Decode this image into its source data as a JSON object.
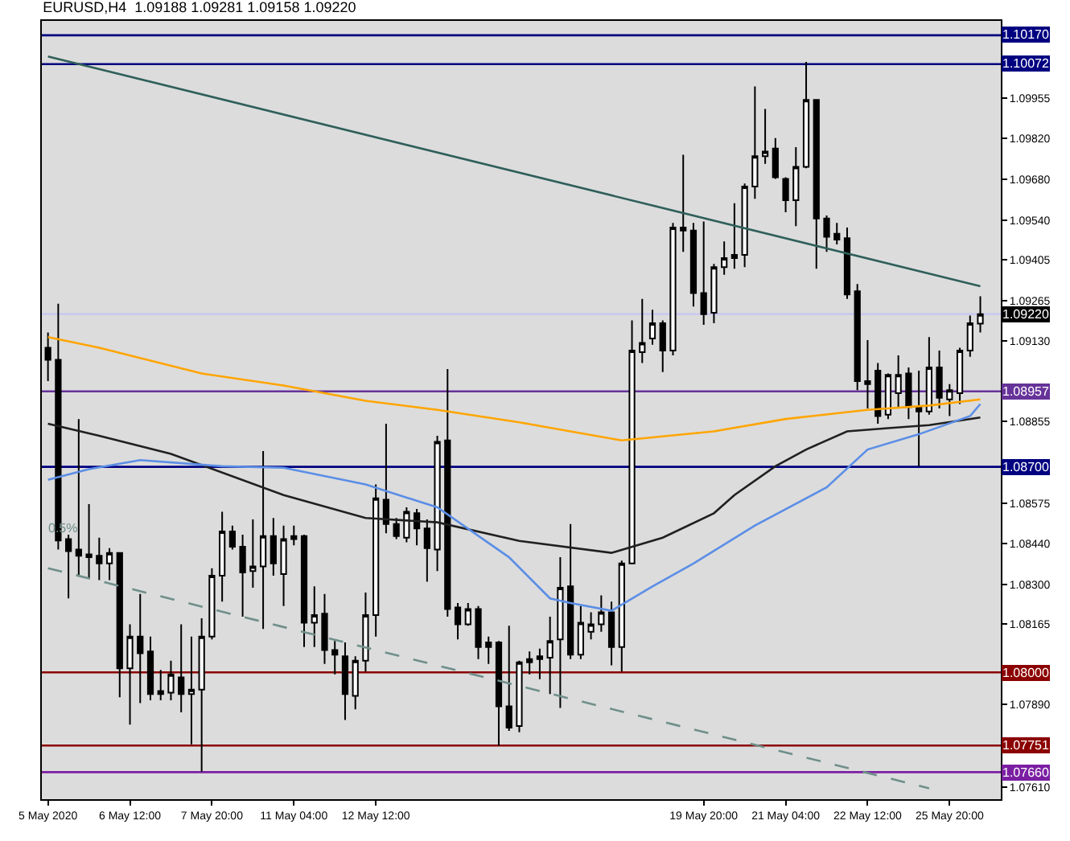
{
  "chart_data": {
    "type": "candlestick",
    "title": "EURUSD,H4  1.09188 1.09281 1.09158 1.09220",
    "categories": [
      "5 May 2020",
      null,
      null,
      null,
      null,
      null,
      null,
      null,
      "6 May 12:00",
      null,
      null,
      null,
      null,
      null,
      null,
      null,
      "7 May 20:00",
      null,
      null,
      null,
      null,
      null,
      null,
      null,
      "11 May 04:00",
      null,
      null,
      null,
      null,
      null,
      null,
      null,
      "12 May 12:00",
      null,
      null,
      null,
      null,
      null,
      null,
      null,
      null,
      null,
      null,
      null,
      null,
      null,
      null,
      null,
      null,
      null,
      null,
      null,
      null,
      null,
      null,
      null,
      null,
      null,
      null,
      null,
      null,
      null,
      null,
      null,
      "19 May 20:00",
      null,
      null,
      null,
      null,
      null,
      null,
      null,
      "21 May 04:00",
      null,
      null,
      null,
      null,
      null,
      null,
      null,
      "22 May 12:00",
      null,
      null,
      null,
      null,
      null,
      null,
      null,
      "25 May 20:00",
      null,
      null,
      null
    ],
    "ohlc": [
      [
        1.09106,
        1.09158,
        1.08992,
        1.09065
      ],
      [
        1.09065,
        1.09256,
        1.08418,
        1.08449
      ],
      [
        1.08454,
        1.08469,
        1.08252,
        1.08413
      ],
      [
        1.08418,
        1.08863,
        1.08329,
        1.08397
      ],
      [
        1.08402,
        1.08573,
        1.08319,
        1.08392
      ],
      [
        1.08397,
        1.08459,
        1.08314,
        1.08371
      ],
      [
        1.08371,
        1.08423,
        1.08314,
        1.08407
      ],
      [
        1.08407,
        1.08407,
        1.07915,
        1.08014
      ],
      [
        1.08014,
        1.08164,
        1.07822,
        1.08122
      ],
      [
        1.08122,
        1.08267,
        1.07895,
        1.08065
      ],
      [
        1.08071,
        1.08122,
        1.07905,
        1.07926
      ],
      [
        1.07936,
        1.08008,
        1.07905,
        1.07926
      ],
      [
        1.07931,
        1.0804,
        1.07905,
        1.07993
      ],
      [
        1.07983,
        1.08164,
        1.07864,
        1.07926
      ],
      [
        1.07926,
        1.08122,
        1.07755,
        1.07941
      ],
      [
        1.07941,
        1.08184,
        1.07662,
        1.08122
      ],
      [
        1.08122,
        1.08355,
        1.08112,
        1.08329
      ],
      [
        1.08329,
        1.08547,
        1.08241,
        1.0848
      ],
      [
        1.0848,
        1.085,
        1.08418,
        1.08428
      ],
      [
        1.08428,
        1.08469,
        1.0819,
        1.0834
      ],
      [
        1.08345,
        1.08521,
        1.08288,
        1.08361
      ],
      [
        1.08361,
        1.08754,
        1.08148,
        1.08464
      ],
      [
        1.08464,
        1.08526,
        1.08329,
        1.08371
      ],
      [
        1.08335,
        1.085,
        1.08226,
        1.08454
      ],
      [
        1.08454,
        1.085,
        1.08433,
        1.08464
      ],
      [
        1.08464,
        1.08469,
        1.08086,
        1.08169
      ],
      [
        1.08169,
        1.08293,
        1.08086,
        1.08195
      ],
      [
        1.082,
        1.08267,
        1.08029,
        1.08076
      ],
      [
        1.08076,
        1.08107,
        1.07993,
        1.0806
      ],
      [
        1.08055,
        1.08102,
        1.07838,
        1.07926
      ],
      [
        1.0792,
        1.08055,
        1.07874,
        1.0804
      ],
      [
        1.0804,
        1.08272,
        1.08003,
        1.08195
      ],
      [
        1.08195,
        1.0864,
        1.08122,
        1.08593
      ],
      [
        1.08588,
        1.08847,
        1.08474,
        1.08505
      ],
      [
        1.08505,
        1.08526,
        1.08454,
        1.08464
      ],
      [
        1.08459,
        1.08562,
        1.08443,
        1.08547
      ],
      [
        1.08542,
        1.08557,
        1.08433,
        1.0849
      ],
      [
        1.0849,
        1.08521,
        1.08309,
        1.08423
      ],
      [
        1.08418,
        1.08806,
        1.08345,
        1.08785
      ],
      [
        1.0879,
        1.09033,
        1.0819,
        1.08216
      ],
      [
        1.08221,
        1.08236,
        1.08112,
        1.08164
      ],
      [
        1.08164,
        1.08236,
        1.08159,
        1.08216
      ],
      [
        1.08216,
        1.08226,
        1.08045,
        1.08086
      ],
      [
        1.08102,
        1.08122,
        1.08029,
        1.08086
      ],
      [
        1.08102,
        1.08107,
        1.0775,
        1.07884
      ],
      [
        1.07884,
        1.08159,
        1.07801,
        1.07812
      ],
      [
        1.07817,
        1.0804,
        1.07796,
        1.08034
      ],
      [
        1.08034,
        1.08071,
        1.07993,
        1.08045
      ],
      [
        1.08055,
        1.08081,
        1.07977,
        1.08045
      ],
      [
        1.0805,
        1.0819,
        1.07926,
        1.08107
      ],
      [
        1.08112,
        1.08392,
        1.07879,
        1.08288
      ],
      [
        1.08293,
        1.08505,
        1.08045,
        1.0806
      ],
      [
        1.0806,
        1.08226,
        1.08045,
        1.08169
      ],
      [
        1.08138,
        1.08205,
        1.08112,
        1.08164
      ],
      [
        1.08164,
        1.08262,
        1.08138,
        1.08205
      ],
      [
        1.08205,
        1.08241,
        1.08024,
        1.08086
      ],
      [
        1.08086,
        1.08381,
        1.08003,
        1.08371
      ],
      [
        1.08371,
        1.09199,
        1.08371,
        1.09096
      ],
      [
        1.09091,
        1.09272,
        1.09054,
        1.09122
      ],
      [
        1.09137,
        1.09235,
        1.09116,
        1.09189
      ],
      [
        1.09189,
        1.09199,
        1.09023,
        1.09096
      ],
      [
        1.09096,
        1.09531,
        1.0908,
        1.09515
      ],
      [
        1.09515,
        1.09763,
        1.09432,
        1.09505
      ],
      [
        1.09505,
        1.09531,
        1.09246,
        1.09292
      ],
      [
        1.09292,
        1.09536,
        1.09184,
        1.0922
      ],
      [
        1.09225,
        1.09391,
        1.09189,
        1.0938
      ],
      [
        1.0938,
        1.09468,
        1.09354,
        1.09411
      ],
      [
        1.09411,
        1.09598,
        1.09375,
        1.09422
      ],
      [
        1.09422,
        1.09665,
        1.0938,
        1.09655
      ],
      [
        1.09655,
        1.09996,
        1.09613,
        1.09758
      ],
      [
        1.09758,
        1.09919,
        1.09732,
        1.09774
      ],
      [
        1.09784,
        1.0982,
        1.09681,
        1.09686
      ],
      [
        1.09681,
        1.09686,
        1.09567,
        1.09608
      ],
      [
        1.09608,
        1.09789,
        1.0952,
        1.09722
      ],
      [
        1.09722,
        1.10079,
        1.09717,
        1.0995
      ],
      [
        1.0995,
        1.0995,
        1.09375,
        1.09546
      ],
      [
        1.09546,
        1.09556,
        1.09432,
        1.09484
      ],
      [
        1.09494,
        1.09531,
        1.09458,
        1.09474
      ],
      [
        1.09479,
        1.09515,
        1.09272,
        1.09287
      ],
      [
        1.09298,
        1.09323,
        1.08961,
        1.08992
      ],
      [
        1.08992,
        1.09132,
        1.08899,
        1.08982
      ],
      [
        1.09028,
        1.09054,
        1.08847,
        1.08873
      ],
      [
        1.08878,
        1.09018,
        1.08863,
        1.09013
      ],
      [
        1.08951,
        1.0908,
        1.08899,
        1.09013
      ],
      [
        1.09018,
        1.09039,
        1.08863,
        1.08904
      ],
      [
        1.08904,
        1.09028,
        1.08702,
        1.08889
      ],
      [
        1.08889,
        1.09142,
        1.08878,
        1.09039
      ],
      [
        1.09039,
        1.09096,
        1.08899,
        1.08935
      ],
      [
        1.0893,
        1.08982,
        1.08873,
        1.08961
      ],
      [
        1.08951,
        1.09106,
        1.08914,
        1.09096
      ],
      [
        1.09096,
        1.09215,
        1.09075,
        1.09189
      ],
      [
        1.09188,
        1.09281,
        1.09158,
        1.0922
      ]
    ],
    "series": [
      {
        "type": "line",
        "color": "#ffa500",
        "line_style": "solid",
        "values": [
          1.09142,
          null,
          null,
          null,
          null,
          1.09106,
          null,
          null,
          null,
          null,
          null,
          null,
          null,
          null,
          null,
          1.09018,
          null,
          null,
          null,
          null,
          null,
          null,
          null,
          1.08977,
          null,
          null,
          null,
          null,
          null,
          null,
          null,
          1.08925,
          null,
          null,
          null,
          null,
          null,
          null,
          1.08894,
          null,
          null,
          null,
          null,
          null,
          null,
          null,
          1.08852,
          null,
          null,
          null,
          null,
          null,
          null,
          null,
          null,
          null,
          1.0879,
          null,
          null,
          null,
          null,
          null,
          null,
          null,
          null,
          1.08821,
          null,
          null,
          null,
          null,
          null,
          null,
          1.08863,
          null,
          null,
          null,
          null,
          null,
          null,
          null,
          1.08894,
          null,
          null,
          null,
          null,
          null,
          1.08909,
          null,
          null,
          null,
          null,
          1.0893
        ]
      },
      {
        "type": "line",
        "color": "#202020",
        "line_style": "solid",
        "values": [
          1.08847,
          null,
          null,
          null,
          null,
          1.08806,
          null,
          null,
          null,
          null,
          null,
          null,
          1.08744,
          null,
          null,
          null,
          null,
          null,
          null,
          null,
          null,
          null,
          null,
          1.08604,
          null,
          null,
          null,
          null,
          null,
          null,
          null,
          1.08526,
          null,
          null,
          null,
          null,
          null,
          null,
          1.08511,
          null,
          null,
          null,
          null,
          null,
          null,
          null,
          1.08448,
          null,
          null,
          null,
          null,
          null,
          null,
          null,
          null,
          1.08407,
          null,
          null,
          null,
          null,
          1.08459,
          null,
          null,
          null,
          null,
          1.08542,
          null,
          1.08604,
          null,
          null,
          null,
          1.08702,
          null,
          null,
          1.08759,
          null,
          null,
          null,
          1.08821,
          null,
          null,
          null,
          1.08832,
          null,
          null,
          null,
          1.08842,
          null,
          null,
          null,
          null,
          1.08868
        ]
      },
      {
        "type": "line",
        "color": "#5b8ee6",
        "line_style": "solid",
        "values": [
          1.08656,
          null,
          null,
          null,
          1.08692,
          null,
          null,
          null,
          null,
          1.08723,
          null,
          null,
          null,
          null,
          null,
          null,
          null,
          1.08702,
          null,
          null,
          null,
          null,
          null,
          1.08697,
          null,
          null,
          null,
          null,
          null,
          null,
          null,
          1.0864,
          null,
          null,
          null,
          null,
          null,
          null,
          1.08562,
          null,
          null,
          null,
          null,
          null,
          null,
          1.08392,
          null,
          null,
          null,
          1.08252,
          null,
          1.08236,
          null,
          null,
          null,
          1.0821,
          null,
          null,
          null,
          1.08293,
          null,
          null,
          null,
          1.08371,
          null,
          null,
          null,
          null,
          null,
          1.085,
          null,
          null,
          null,
          null,
          null,
          null,
          1.0863,
          null,
          null,
          null,
          1.08759,
          null,
          null,
          null,
          null,
          1.08811,
          null,
          null,
          null,
          null,
          1.08873,
          1.08914
        ]
      },
      {
        "type": "line",
        "color": "#2f5f5a",
        "line_style": "solid",
        "values": [
          1.10098,
          null,
          null,
          null,
          null,
          null,
          null,
          null,
          null,
          null,
          null,
          null,
          null,
          null,
          null,
          null,
          null,
          null,
          null,
          null,
          null,
          null,
          null,
          null,
          null,
          null,
          null,
          null,
          null,
          null,
          null,
          null,
          null,
          null,
          null,
          null,
          null,
          null,
          null,
          null,
          null,
          null,
          null,
          null,
          null,
          null,
          null,
          null,
          null,
          null,
          null,
          null,
          null,
          null,
          null,
          null,
          null,
          null,
          null,
          null,
          null,
          null,
          null,
          null,
          null,
          null,
          null,
          null,
          null,
          null,
          null,
          null,
          null,
          null,
          null,
          null,
          null,
          null,
          null,
          null,
          null,
          null,
          null,
          null,
          null,
          null,
          null,
          null,
          null,
          null,
          null,
          1.09315
        ]
      },
      {
        "type": "line",
        "color": "#6f8f8a",
        "line_style": "dashed",
        "values": [
          1.08355,
          null,
          null,
          null,
          null,
          null,
          null,
          null,
          null,
          null,
          null,
          null,
          null,
          null,
          null,
          null,
          null,
          null,
          null,
          null,
          null,
          null,
          null,
          null,
          null,
          null,
          null,
          null,
          null,
          null,
          null,
          null,
          null,
          null,
          null,
          null,
          null,
          null,
          null,
          null,
          null,
          null,
          null,
          null,
          null,
          null,
          null,
          null,
          null,
          null,
          null,
          null,
          null,
          null,
          null,
          null,
          null,
          null,
          null,
          null,
          null,
          null,
          null,
          null,
          null,
          null,
          null,
          null,
          null,
          null,
          null,
          null,
          null,
          null,
          null,
          null,
          null,
          null,
          null,
          null,
          null,
          null,
          null,
          null,
          null,
          null,
          1.07605,
          null,
          null,
          null,
          null,
          null
        ]
      }
    ],
    "ref_lines": [
      {
        "axis": "y",
        "value": 1.1017,
        "label": "1.10170",
        "color": "#000080",
        "line_style": "solid"
      },
      {
        "axis": "y",
        "value": 1.10072,
        "label": "1.10072",
        "color": "#000080",
        "line_style": "solid"
      },
      {
        "axis": "y",
        "value": 1.0922,
        "label": "1.09220",
        "color": "#c8c8f0",
        "line_style": "solid"
      },
      {
        "axis": "y",
        "value": 1.08957,
        "label": "1.08957",
        "color": "#663399",
        "line_style": "solid"
      },
      {
        "axis": "y",
        "value": 1.087,
        "label": "1.08700",
        "color": "#000080",
        "line_style": "solid"
      },
      {
        "axis": "y",
        "value": 1.08,
        "label": "1.08000",
        "color": "#8b0000",
        "line_style": "solid"
      },
      {
        "axis": "y",
        "value": 1.07751,
        "label": "1.07751",
        "color": "#8b0000",
        "line_style": "solid"
      },
      {
        "axis": "y",
        "value": 1.0766,
        "label": "1.07660",
        "color": "#7b1fa2",
        "line_style": "solid"
      }
    ],
    "annotations": [
      "0.5%"
    ],
    "ylim": [
      1.07568,
      1.10219
    ],
    "yticks": [
      {
        "value": 1.09955,
        "label": "1.09955"
      },
      {
        "value": 1.0982,
        "label": "1.09820"
      },
      {
        "value": 1.0968,
        "label": "1.09680"
      },
      {
        "value": 1.0954,
        "label": "1.09540"
      },
      {
        "value": 1.09405,
        "label": "1.09405"
      },
      {
        "value": 1.09265,
        "label": "1.09265"
      },
      {
        "value": 1.0913,
        "label": "1.09130"
      },
      {
        "value": 1.08855,
        "label": "1.08855"
      },
      {
        "value": 1.08575,
        "label": "1.08575"
      },
      {
        "value": 1.0844,
        "label": "1.08440"
      },
      {
        "value": 1.083,
        "label": "1.08300"
      },
      {
        "value": 1.08165,
        "label": "1.08165"
      },
      {
        "value": 1.0789,
        "label": "1.07890"
      },
      {
        "value": 1.0761,
        "label": "1.07610"
      }
    ],
    "grid": false
  }
}
